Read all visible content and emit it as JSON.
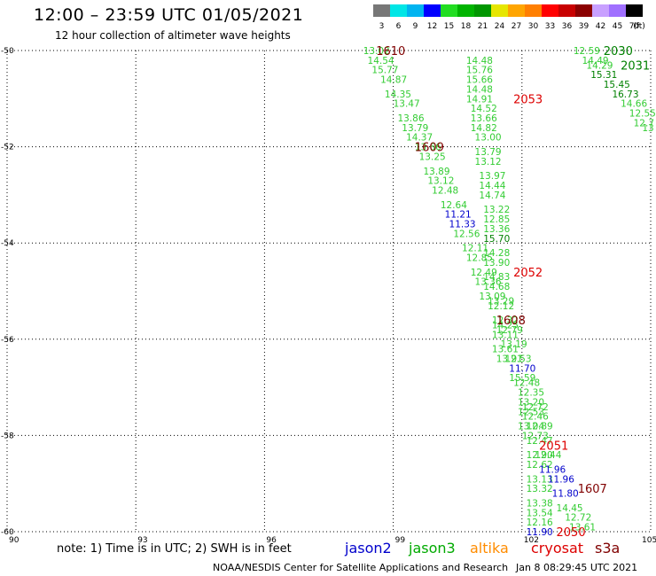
{
  "header": {
    "title": "12:00 – 23:59 UTC 01/05/2021",
    "subtitle": "12 hour collection of altimeter wave heights"
  },
  "color_scale": {
    "labels": [
      "3",
      "6",
      "9",
      "12",
      "15",
      "18",
      "21",
      "24",
      "27",
      "30",
      "33",
      "36",
      "39",
      "42",
      "45",
      "70"
    ],
    "unit": "(ft)",
    "colors": [
      "#777777",
      "#00e6e6",
      "#00b4f0",
      "#0000ff",
      "#22dd22",
      "#00b400",
      "#009600",
      "#e6e600",
      "#ffa500",
      "#ff7f00",
      "#ff0000",
      "#c80000",
      "#8b0000",
      "#c8a0ff",
      "#a070ff",
      "#000000"
    ]
  },
  "axes": {
    "lon_labels": [
      "90",
      "93",
      "96",
      "99",
      "102",
      "105"
    ],
    "lat_labels": [
      "-50",
      "-52",
      "-54",
      "-56",
      "-58",
      "-60"
    ]
  },
  "colors": {
    "jason3": "#33cc33",
    "jason3_id": "#008000",
    "jason2": "#0000cc",
    "cryosat": "#dd0000",
    "s3a": "#800000",
    "altika": "#ff8c00"
  },
  "chart_data": {
    "type": "scatter",
    "xlim": [
      90,
      105
    ],
    "ylim": [
      -60,
      -50
    ],
    "x_ticks": [
      90,
      93,
      96,
      99,
      102,
      105
    ],
    "y_ticks": [
      -50,
      -52,
      -54,
      -56,
      -58,
      -60
    ],
    "grid": true,
    "labels": [
      {
        "text": "13.02",
        "x": 98.3,
        "y": -50.0,
        "c": "jason3"
      },
      {
        "text": "14.54",
        "x": 98.4,
        "y": -50.2,
        "c": "jason3"
      },
      {
        "text": "15.77",
        "x": 98.5,
        "y": -50.4,
        "c": "jason3"
      },
      {
        "text": "14.87",
        "x": 98.7,
        "y": -50.6,
        "c": "jason3"
      },
      {
        "text": "14.35",
        "x": 98.8,
        "y": -50.9,
        "c": "jason3"
      },
      {
        "text": "13.47",
        "x": 99.0,
        "y": -51.1,
        "c": "jason3"
      },
      {
        "text": "13.86",
        "x": 99.1,
        "y": -51.4,
        "c": "jason3"
      },
      {
        "text": "13.79",
        "x": 99.2,
        "y": -51.6,
        "c": "jason3"
      },
      {
        "text": "14.37",
        "x": 99.3,
        "y": -51.8,
        "c": "jason3"
      },
      {
        "text": "13.66",
        "x": 99.5,
        "y": -52.0,
        "c": "jason3"
      },
      {
        "text": "13.25",
        "x": 99.6,
        "y": -52.2,
        "c": "jason3"
      },
      {
        "text": "13.89",
        "x": 99.7,
        "y": -52.5,
        "c": "jason3"
      },
      {
        "text": "13.12",
        "x": 99.8,
        "y": -52.7,
        "c": "jason3"
      },
      {
        "text": "12.48",
        "x": 99.9,
        "y": -52.9,
        "c": "jason3"
      },
      {
        "text": "12.64",
        "x": 100.1,
        "y": -53.2,
        "c": "jason3"
      },
      {
        "text": "11.21",
        "x": 100.2,
        "y": -53.4,
        "c": "jason2"
      },
      {
        "text": "11.33",
        "x": 100.3,
        "y": -53.6,
        "c": "jason2"
      },
      {
        "text": "12.56",
        "x": 100.4,
        "y": -53.8,
        "c": "jason3"
      },
      {
        "text": "12.11",
        "x": 100.6,
        "y": -54.1,
        "c": "jason3"
      },
      {
        "text": "12.85",
        "x": 100.7,
        "y": -54.3,
        "c": "jason3"
      },
      {
        "text": "12.49",
        "x": 100.8,
        "y": -54.6,
        "c": "jason3"
      },
      {
        "text": "13.36",
        "x": 100.9,
        "y": -54.8,
        "c": "jason3"
      },
      {
        "text": "13.09",
        "x": 101.0,
        "y": -55.1,
        "c": "jason3"
      },
      {
        "text": "12.12",
        "x": 101.2,
        "y": -55.3,
        "c": "jason3"
      },
      {
        "text": "12.32",
        "x": 101.3,
        "y": -55.6,
        "c": "jason3"
      },
      {
        "text": "12.79",
        "x": 101.4,
        "y": -55.8,
        "c": "jason3"
      },
      {
        "text": "13.19",
        "x": 101.5,
        "y": -56.1,
        "c": "jason3"
      },
      {
        "text": "12.53",
        "x": 101.6,
        "y": -56.4,
        "c": "jason3"
      },
      {
        "text": "11.70",
        "x": 101.7,
        "y": -56.6,
        "c": "jason2"
      },
      {
        "text": "12.48",
        "x": 101.8,
        "y": -56.9,
        "c": "jason3"
      },
      {
        "text": "12.35",
        "x": 101.9,
        "y": -57.1,
        "c": "jason3"
      },
      {
        "text": "12.72",
        "x": 102.0,
        "y": -57.4,
        "c": "jason3"
      },
      {
        "text": "12.46",
        "x": 102.0,
        "y": -57.6,
        "c": "jason3"
      },
      {
        "text": "12.89",
        "x": 102.1,
        "y": -57.8,
        "c": "jason3"
      },
      {
        "text": "12.47",
        "x": 102.1,
        "y": -58.1,
        "c": "jason3"
      },
      {
        "text": "12.90",
        "x": 102.1,
        "y": -58.4,
        "c": "jason3"
      },
      {
        "text": "12.62",
        "x": 102.1,
        "y": -58.6,
        "c": "jason3"
      },
      {
        "text": "13.13",
        "x": 102.1,
        "y": -58.9,
        "c": "jason3"
      },
      {
        "text": "13.32",
        "x": 102.1,
        "y": -59.1,
        "c": "jason3"
      },
      {
        "text": "13.38",
        "x": 102.1,
        "y": -59.4,
        "c": "jason3"
      },
      {
        "text": "13.54",
        "x": 102.1,
        "y": -59.6,
        "c": "jason3"
      },
      {
        "text": "12.16",
        "x": 102.1,
        "y": -59.8,
        "c": "jason3"
      },
      {
        "text": "11.90",
        "x": 102.1,
        "y": -60.0,
        "c": "jason2"
      },
      {
        "text": "14.48",
        "x": 100.7,
        "y": -50.2,
        "c": "jason3"
      },
      {
        "text": "15.76",
        "x": 100.7,
        "y": -50.4,
        "c": "jason3"
      },
      {
        "text": "15.66",
        "x": 100.7,
        "y": -50.6,
        "c": "jason3"
      },
      {
        "text": "14.48",
        "x": 100.7,
        "y": -50.8,
        "c": "jason3"
      },
      {
        "text": "14.91",
        "x": 100.7,
        "y": -51.0,
        "c": "jason3"
      },
      {
        "text": "14.52",
        "x": 100.8,
        "y": -51.2,
        "c": "jason3"
      },
      {
        "text": "13.66",
        "x": 100.8,
        "y": -51.4,
        "c": "jason3"
      },
      {
        "text": "14.82",
        "x": 100.8,
        "y": -51.6,
        "c": "jason3"
      },
      {
        "text": "13.00",
        "x": 100.9,
        "y": -51.8,
        "c": "jason3"
      },
      {
        "text": "13.79",
        "x": 100.9,
        "y": -52.1,
        "c": "jason3"
      },
      {
        "text": "13.12",
        "x": 100.9,
        "y": -52.3,
        "c": "jason3"
      },
      {
        "text": "13.97",
        "x": 101.0,
        "y": -52.6,
        "c": "jason3"
      },
      {
        "text": "14.44",
        "x": 101.0,
        "y": -52.8,
        "c": "jason3"
      },
      {
        "text": "14.74",
        "x": 101.0,
        "y": -53.0,
        "c": "jason3"
      },
      {
        "text": "13.22",
        "x": 101.1,
        "y": -53.3,
        "c": "jason3"
      },
      {
        "text": "12.85",
        "x": 101.1,
        "y": -53.5,
        "c": "jason3"
      },
      {
        "text": "13.36",
        "x": 101.1,
        "y": -53.7,
        "c": "jason3"
      },
      {
        "text": "15.70",
        "x": 101.1,
        "y": -53.9,
        "c": "jason3_id"
      },
      {
        "text": "14.28",
        "x": 101.1,
        "y": -54.2,
        "c": "jason3"
      },
      {
        "text": "13.90",
        "x": 101.1,
        "y": -54.4,
        "c": "jason3"
      },
      {
        "text": "14.83",
        "x": 101.1,
        "y": -54.7,
        "c": "jason3"
      },
      {
        "text": "14.68",
        "x": 101.1,
        "y": -54.9,
        "c": "jason3"
      },
      {
        "text": "13.29",
        "x": 101.2,
        "y": -55.2,
        "c": "jason3"
      },
      {
        "text": "14.25",
        "x": 101.3,
        "y": -55.7,
        "c": "jason3"
      },
      {
        "text": "13.11",
        "x": 101.3,
        "y": -55.9,
        "c": "jason3"
      },
      {
        "text": "13.61",
        "x": 101.3,
        "y": -56.2,
        "c": "jason3"
      },
      {
        "text": "13.91",
        "x": 101.4,
        "y": -56.4,
        "c": "jason3"
      },
      {
        "text": "15.59",
        "x": 101.7,
        "y": -56.8,
        "c": "jason3"
      },
      {
        "text": "13.20",
        "x": 101.9,
        "y": -57.3,
        "c": "jason3"
      },
      {
        "text": "12.53",
        "x": 101.9,
        "y": -57.5,
        "c": "jason3"
      },
      {
        "text": "13.04",
        "x": 101.9,
        "y": -57.8,
        "c": "jason3"
      },
      {
        "text": "12.73",
        "x": 102.0,
        "y": -58.0,
        "c": "jason3"
      },
      {
        "text": "12.44",
        "x": 102.3,
        "y": -58.4,
        "c": "jason3"
      },
      {
        "text": "11.96",
        "x": 102.4,
        "y": -58.7,
        "c": "jason2"
      },
      {
        "text": "11.96",
        "x": 102.6,
        "y": -58.9,
        "c": "jason2"
      },
      {
        "text": "11.80",
        "x": 102.7,
        "y": -59.2,
        "c": "jason2"
      },
      {
        "text": "14.45",
        "x": 102.8,
        "y": -59.5,
        "c": "jason3"
      },
      {
        "text": "12.72",
        "x": 103.0,
        "y": -59.7,
        "c": "jason3"
      },
      {
        "text": "13.61",
        "x": 103.1,
        "y": -59.9,
        "c": "jason3"
      },
      {
        "text": "12.59",
        "x": 103.2,
        "y": -50.0,
        "c": "jason3"
      },
      {
        "text": "14.49",
        "x": 103.4,
        "y": -50.2,
        "c": "jason3"
      },
      {
        "text": "14.29",
        "x": 103.5,
        "y": -50.3,
        "c": "jason3"
      },
      {
        "text": "15.31",
        "x": 103.6,
        "y": -50.5,
        "c": "jason3_id"
      },
      {
        "text": "15.45",
        "x": 103.9,
        "y": -50.7,
        "c": "jason3_id"
      },
      {
        "text": "16.73",
        "x": 104.1,
        "y": -50.9,
        "c": "jason3_id"
      },
      {
        "text": "14.66",
        "x": 104.3,
        "y": -51.1,
        "c": "jason3"
      },
      {
        "text": "12.55",
        "x": 104.5,
        "y": -51.3,
        "c": "jason3"
      },
      {
        "text": "12.7",
        "x": 104.6,
        "y": -51.5,
        "c": "jason3"
      },
      {
        "text": "13",
        "x": 104.8,
        "y": -51.6,
        "c": "jason3"
      }
    ],
    "ids": [
      {
        "text": "1610",
        "x": 98.6,
        "y": -50.0,
        "c": "s3a"
      },
      {
        "text": "1609",
        "x": 99.5,
        "y": -52.0,
        "c": "s3a"
      },
      {
        "text": "1608",
        "x": 101.4,
        "y": -55.6,
        "c": "s3a"
      },
      {
        "text": "1607",
        "x": 103.3,
        "y": -59.1,
        "c": "s3a"
      },
      {
        "text": "2053",
        "x": 101.8,
        "y": -51.0,
        "c": "cryosat"
      },
      {
        "text": "2052",
        "x": 101.8,
        "y": -54.6,
        "c": "cryosat"
      },
      {
        "text": "2051",
        "x": 102.4,
        "y": -58.2,
        "c": "cryosat"
      },
      {
        "text": "2050",
        "x": 102.8,
        "y": -60.0,
        "c": "cryosat"
      },
      {
        "text": "2030",
        "x": 103.9,
        "y": -50.0,
        "c": "jason3_id"
      },
      {
        "text": "2031",
        "x": 104.3,
        "y": -50.3,
        "c": "jason3_id"
      }
    ]
  },
  "footer": {
    "note": "note:  1) Time is in UTC; 2) SWH is in feet",
    "sat_jason2": "jason2",
    "sat_jason3": "jason3",
    "sat_altika": "altika",
    "sat_cryosat": "cryosat",
    "sat_s3a": "s3a",
    "credit": "NOAA/NESDIS Center for Satellite Applications and Research",
    "timestamp": "Jan  8 08:29:45 UTC 2021"
  }
}
